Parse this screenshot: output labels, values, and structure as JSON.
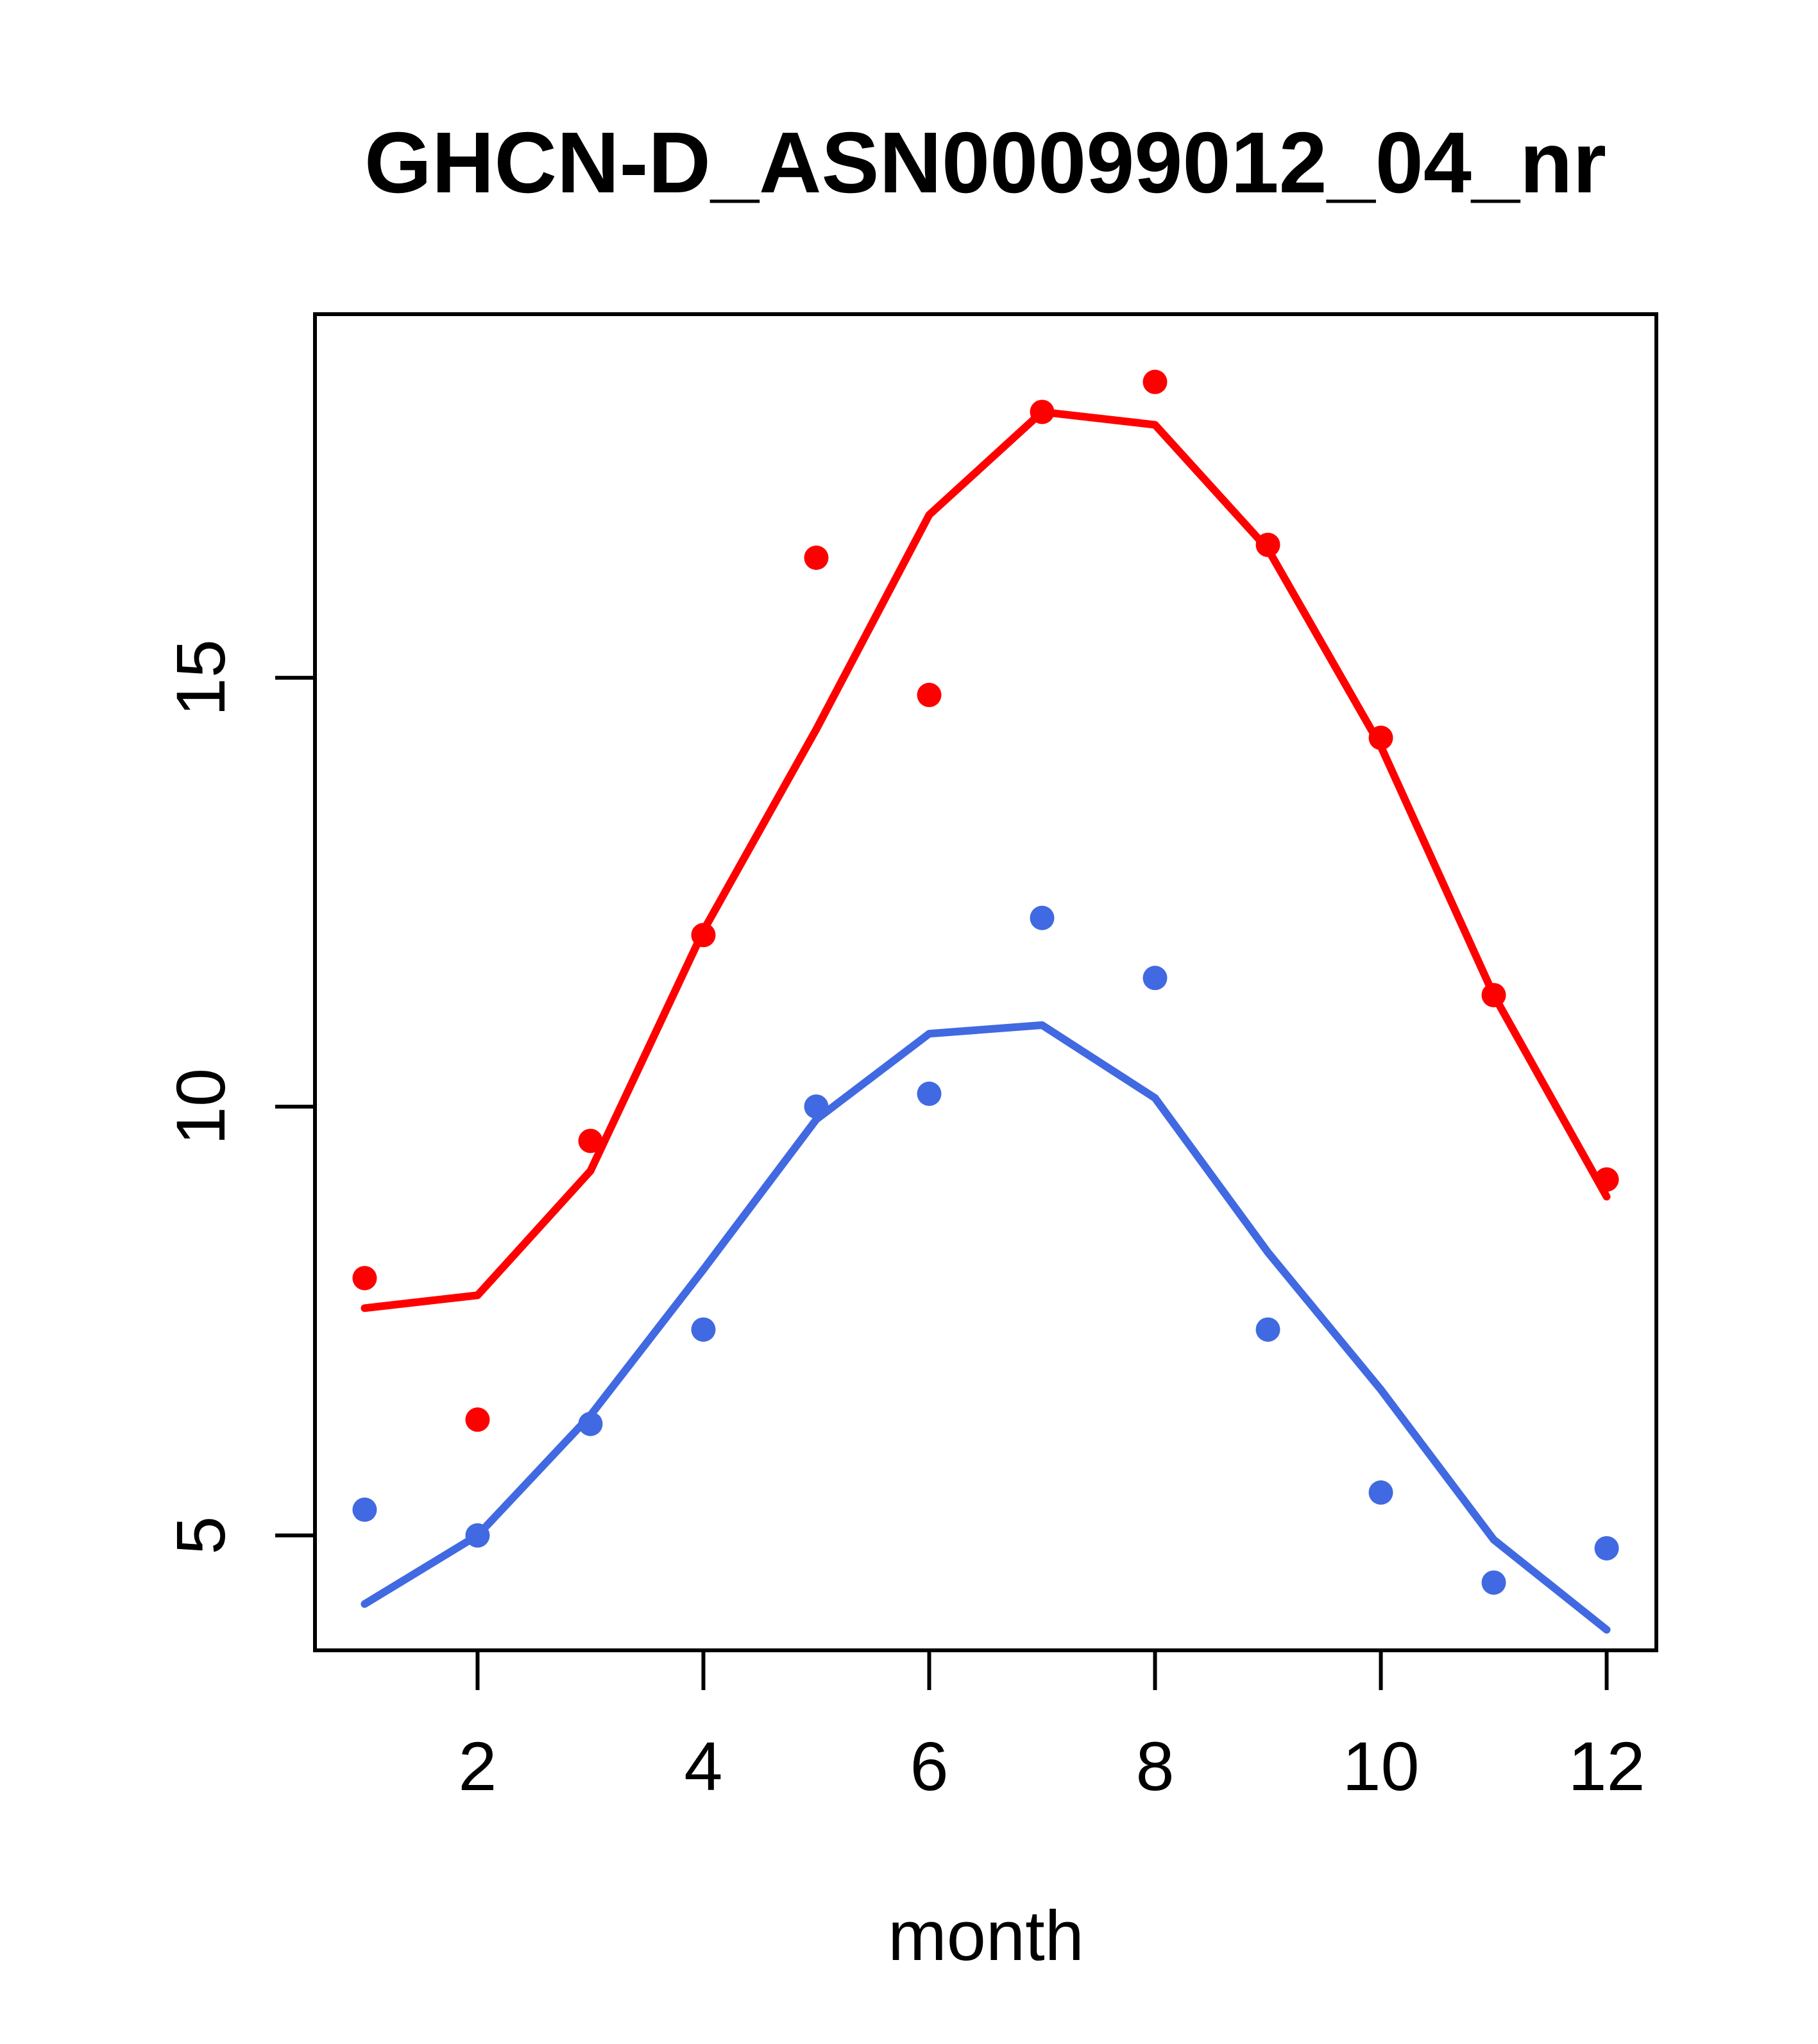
{
  "title": "GHCN-D_ASN00099012_04_nr",
  "colors": {
    "red_series": "#FF0000",
    "blue_series": "#4169E1",
    "axis": "#000000",
    "background": "#FFFFFF"
  },
  "chart_data": {
    "type": "scatter",
    "subtype": "monthly-points-with-fitted-lines",
    "title": "GHCN-D_ASN00099012_04_nr",
    "xlabel": "month",
    "ylabel": "",
    "x": [
      1,
      2,
      3,
      4,
      5,
      6,
      7,
      8,
      9,
      10,
      11,
      12
    ],
    "x_ticks": [
      2,
      4,
      6,
      8,
      10,
      12
    ],
    "y_ticks": [
      5,
      10,
      15
    ],
    "xlim": [
      0.56,
      12.44
    ],
    "ylim": [
      3.66,
      19.24
    ],
    "grid": false,
    "legend": "none",
    "series": [
      {
        "name": "red-points",
        "type": "scatter",
        "color": "#FF0000",
        "values": [
          8.0,
          6.35,
          9.6,
          12.0,
          16.4,
          14.8,
          18.1,
          18.45,
          16.55,
          14.3,
          11.3,
          9.15
        ]
      },
      {
        "name": "red-line",
        "type": "line",
        "color": "#FF0000",
        "values": [
          7.65,
          7.8,
          9.25,
          12.05,
          14.4,
          16.9,
          18.1,
          17.95,
          16.5,
          14.2,
          11.3,
          8.95
        ]
      },
      {
        "name": "blue-points",
        "type": "scatter",
        "color": "#4169E1",
        "values": [
          5.3,
          5.0,
          6.3,
          7.4,
          10.0,
          10.15,
          12.2,
          11.5,
          7.4,
          5.5,
          4.45,
          4.85
        ]
      },
      {
        "name": "blue-line",
        "type": "line",
        "color": "#4169E1",
        "values": [
          4.2,
          5.0,
          6.4,
          8.1,
          9.85,
          10.85,
          10.95,
          10.1,
          8.3,
          6.7,
          4.95,
          3.9
        ]
      }
    ]
  }
}
